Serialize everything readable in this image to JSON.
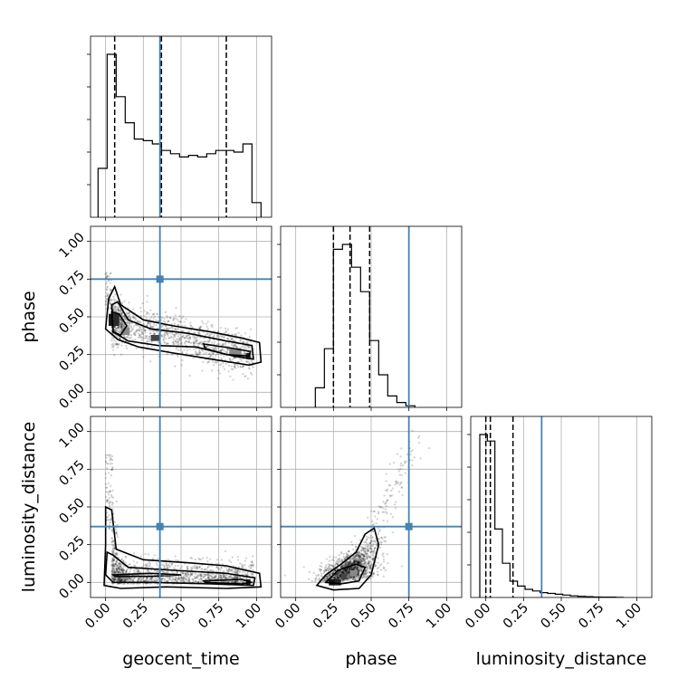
{
  "chart_data": {
    "type": "corner",
    "parameters": [
      "geocent_time",
      "phase",
      "luminosity_distance"
    ],
    "axis_range": [
      -0.1,
      1.1
    ],
    "tick_values": [
      0.0,
      0.25,
      0.5,
      0.75,
      1.0
    ],
    "tick_labels": [
      "0.00",
      "0.25",
      "0.50",
      "0.75",
      "1.00"
    ],
    "grid": true,
    "truths": {
      "geocent_time": 0.36,
      "phase": 0.75,
      "luminosity_distance": 0.37
    },
    "truth_color": "#4682b4",
    "marginals": [
      {
        "parameter": "geocent_time",
        "bin_edges": [
          -0.05,
          0.01,
          0.07,
          0.13,
          0.19,
          0.25,
          0.31,
          0.37,
          0.43,
          0.49,
          0.55,
          0.61,
          0.67,
          0.73,
          0.79,
          0.85,
          0.91,
          0.97,
          1.03
        ],
        "counts": [
          0.3,
          1.0,
          0.74,
          0.58,
          0.48,
          0.47,
          0.45,
          0.41,
          0.39,
          0.37,
          0.38,
          0.37,
          0.39,
          0.41,
          0.41,
          0.4,
          0.45,
          0.09
        ],
        "quantiles": [
          0.06,
          0.37,
          0.8
        ]
      },
      {
        "parameter": "phase",
        "bin_edges": [
          0.13,
          0.19,
          0.25,
          0.31,
          0.37,
          0.43,
          0.49,
          0.55,
          0.61,
          0.67,
          0.73,
          0.79
        ],
        "counts": [
          0.12,
          0.36,
          0.97,
          1.0,
          0.86,
          0.71,
          0.41,
          0.2,
          0.07,
          0.03,
          0.01
        ],
        "quantiles": [
          0.25,
          0.36,
          0.49
        ]
      },
      {
        "parameter": "luminosity_distance",
        "bin_edges": [
          -0.04,
          0.01,
          0.06,
          0.11,
          0.16,
          0.21,
          0.26,
          0.31,
          0.36,
          0.41,
          0.46,
          0.51,
          0.56,
          0.61,
          0.66,
          0.71,
          0.76,
          0.81,
          0.86,
          0.91
        ],
        "counts": [
          1.0,
          0.96,
          0.42,
          0.21,
          0.1,
          0.07,
          0.05,
          0.04,
          0.03,
          0.025,
          0.02,
          0.015,
          0.01,
          0.007,
          0.005,
          0.003,
          0.002,
          0.002,
          0.001
        ],
        "quantiles": [
          0.0,
          0.03,
          0.18
        ]
      }
    ]
  }
}
